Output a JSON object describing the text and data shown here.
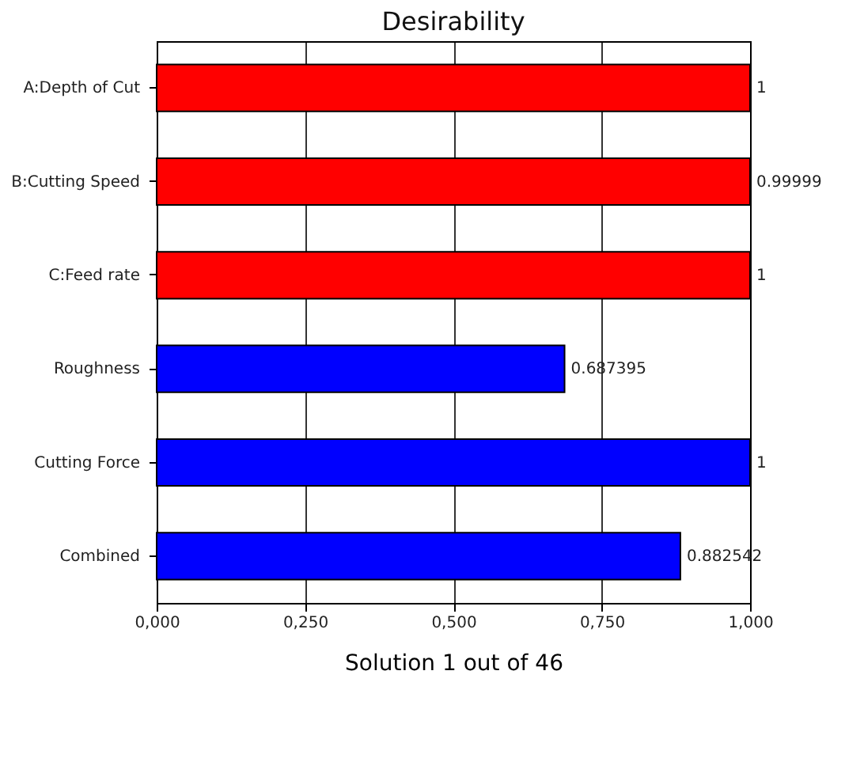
{
  "chart_data": {
    "type": "bar",
    "orientation": "horizontal",
    "title": "Desirability",
    "xlabel": "Solution 1 out of 46",
    "categories": [
      "A:Depth of Cut",
      "B:Cutting Speed",
      "C:Feed rate",
      "Roughness",
      "Cutting Force",
      "Combined"
    ],
    "values": [
      1,
      0.99999,
      1,
      0.687395,
      1,
      0.882542
    ],
    "colors": [
      "#ff0000",
      "#ff0000",
      "#ff0000",
      "#0000ff",
      "#0000ff",
      "#0000ff"
    ],
    "xlim": [
      0,
      1
    ],
    "xticks": [
      {
        "value": 0,
        "label": "0,000"
      },
      {
        "value": 0.25,
        "label": "0,250"
      },
      {
        "value": 0.5,
        "label": "0,500"
      },
      {
        "value": 0.75,
        "label": "0,750"
      },
      {
        "value": 1,
        "label": "1,000"
      }
    ],
    "grid": "x",
    "data_labels": true
  }
}
